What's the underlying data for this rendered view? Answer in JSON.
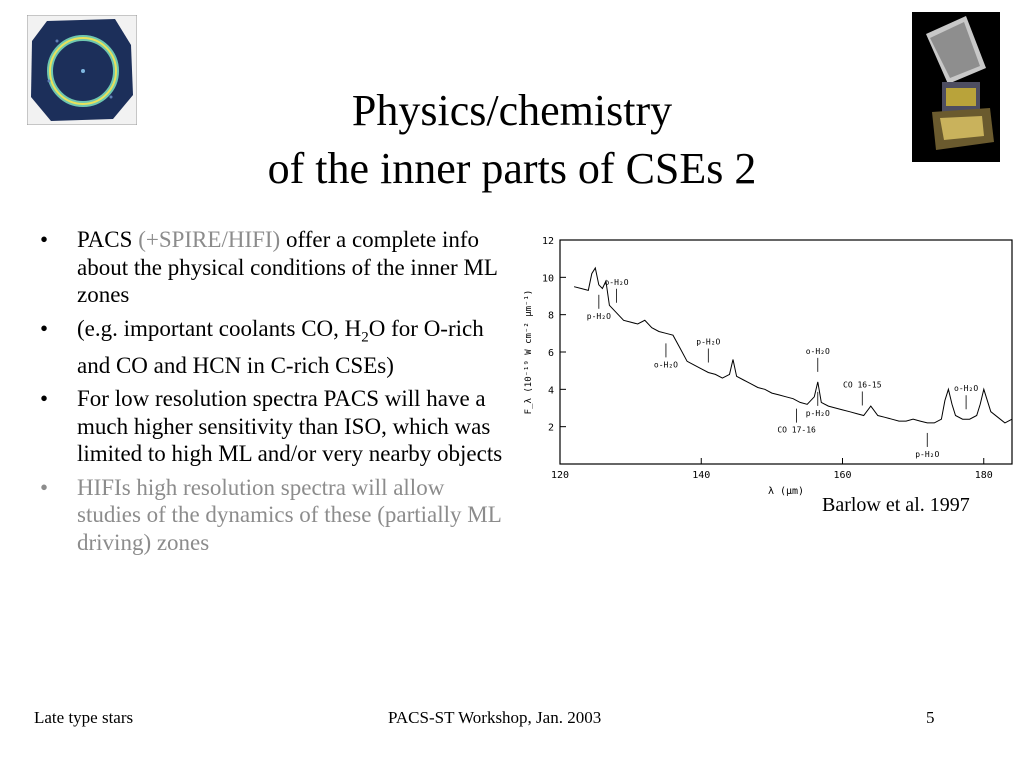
{
  "title": {
    "line1": "Physics/chemistry",
    "line2": "of the inner parts of CSEs 2"
  },
  "bullets": [
    {
      "pre": "PACS ",
      "highlight": "(+SPIRE/HIFI)",
      "post": " offer a complete info about the physical conditions of the inner ML zones"
    },
    {
      "pre": "(e.g. important coolants CO, H",
      "sub": "2",
      "post": "O for O-rich and CO and HCN in C-rich CSEs)"
    },
    {
      "text": "For low resolution spectra PACS will have a much higher sensitivity than ISO, which was limited to high ML and/or very nearby objects"
    },
    {
      "text": "HIFIs high resolution spectra will allow studies of the dynamics of these (partially ML driving) zones"
    }
  ],
  "bullet_symbol": "•",
  "chart_data": {
    "type": "line",
    "xlabel": "λ (μm)",
    "ylabel": "F_λ (10⁻¹⁹ W cm⁻² μm⁻¹)",
    "xlim": [
      120,
      184
    ],
    "ylim": [
      0,
      12
    ],
    "xticks": [
      120,
      140,
      160,
      180
    ],
    "yticks": [
      2,
      4,
      6,
      8,
      10,
      12
    ],
    "series": [
      {
        "x": [
          122,
          123,
          124,
          124.5,
          125,
          125.5,
          126,
          126.5,
          127,
          128,
          129,
          130,
          131,
          132,
          133,
          134,
          135,
          136,
          137,
          138,
          139,
          140,
          141,
          142,
          143,
          144,
          144.5,
          145,
          146,
          147,
          148,
          149,
          150,
          151,
          152,
          153,
          154,
          155,
          156,
          156.5,
          157,
          158,
          159,
          160,
          161,
          162,
          163,
          164,
          165,
          166,
          167,
          168,
          169,
          170,
          171,
          172,
          173,
          174,
          174.5,
          175,
          175.5,
          176,
          177,
          178,
          179,
          179.5,
          180,
          181,
          182,
          183,
          184
        ],
        "y": [
          9.5,
          9.4,
          9.3,
          10.2,
          10.5,
          9.6,
          9.4,
          9.8,
          8.5,
          8.1,
          7.7,
          7.6,
          7.5,
          7.7,
          7.3,
          7.1,
          7.0,
          6.9,
          6.2,
          5.5,
          5.3,
          5.1,
          4.9,
          4.8,
          4.6,
          4.8,
          5.6,
          4.7,
          4.5,
          4.3,
          4.1,
          4.0,
          3.8,
          3.7,
          3.6,
          3.5,
          3.3,
          3.2,
          3.6,
          4.4,
          3.3,
          3.1,
          3.0,
          2.9,
          2.8,
          2.7,
          2.6,
          3.1,
          2.6,
          2.5,
          2.4,
          2.3,
          2.3,
          2.4,
          2.3,
          2.2,
          2.2,
          2.4,
          3.4,
          4.0,
          3.2,
          2.6,
          2.4,
          2.4,
          2.6,
          3.2,
          4.0,
          2.8,
          2.5,
          2.2,
          2.4
        ]
      }
    ],
    "annotations": [
      {
        "label": "p-H₂O",
        "x": 125.5
      },
      {
        "label": "o-H₂O",
        "x": 128
      },
      {
        "label": "o-H₂O",
        "x": 135
      },
      {
        "label": "p-H₂O",
        "x": 141
      },
      {
        "label": "CO 17-16",
        "x": 153.5
      },
      {
        "label": "o-H₂O",
        "x": 156.5
      },
      {
        "label": "p-H₂O",
        "x": 156.5
      },
      {
        "label": "CO 16-15",
        "x": 162.8
      },
      {
        "label": "p-H₂O",
        "x": 172
      },
      {
        "label": "o-H₂O",
        "x": 177.5
      }
    ]
  },
  "caption": "Barlow et al. 1997",
  "footer": {
    "left": "Late type stars",
    "center": "PACS-ST Workshop, Jan. 2003",
    "right": "5"
  }
}
